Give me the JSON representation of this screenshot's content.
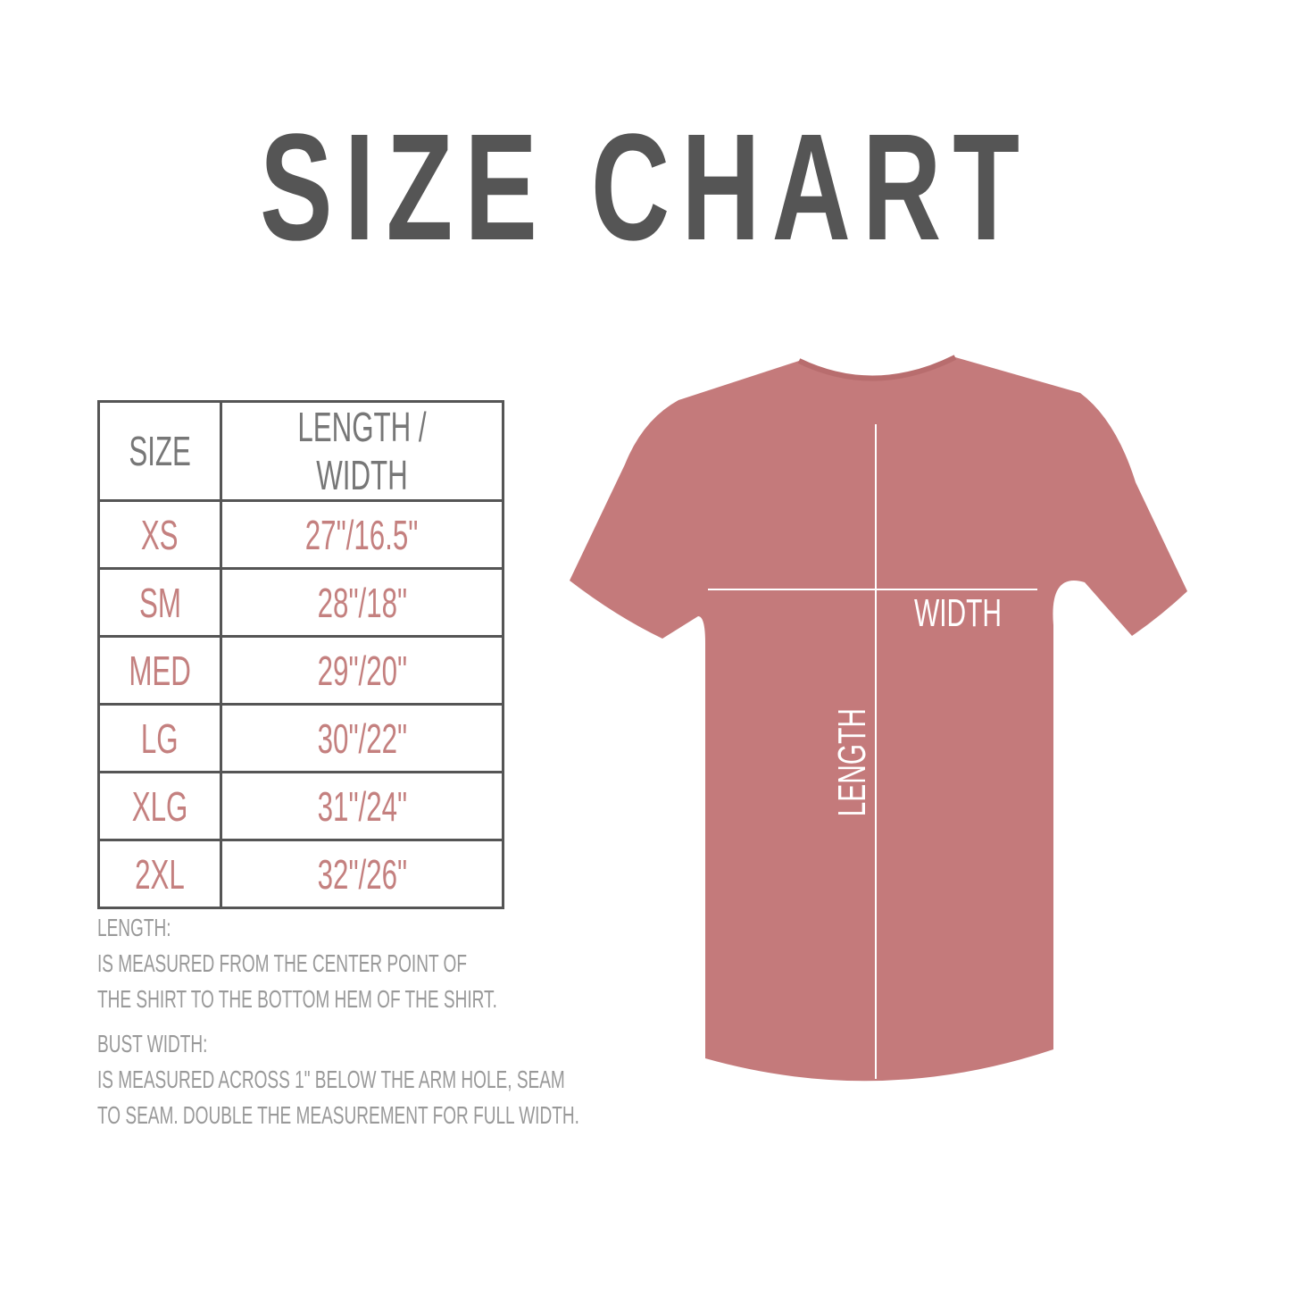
{
  "title": "SIZE CHART",
  "table": {
    "headers": [
      "SIZE",
      "LENGTH / WIDTH"
    ],
    "rows": [
      {
        "size": "XS",
        "measure": "27\"/16.5\""
      },
      {
        "size": "SM",
        "measure": "28\"/18\""
      },
      {
        "size": "MED",
        "measure": "29\"/20\""
      },
      {
        "size": "LG",
        "measure": "30\"/22\""
      },
      {
        "size": "XLG",
        "measure": "31\"/24\""
      },
      {
        "size": "2XL",
        "measure": "32\"/26\""
      }
    ]
  },
  "notes": {
    "length_heading": "LENGTH:",
    "length_lines": [
      "IS MEASURED FROM THE CENTER POINT OF",
      "THE SHIRT TO THE BOTTOM HEM OF THE SHIRT."
    ],
    "width_heading": "BUST WIDTH:",
    "width_lines": [
      "IS MEASURED ACROSS  1\" BELOW THE ARM HOLE, SEAM",
      "TO SEAM. DOUBLE THE MEASUREMENT FOR FULL WIDTH."
    ]
  },
  "diagram": {
    "width_label": "WIDTH",
    "length_label": "LENGTH"
  },
  "colors": {
    "title": "#555555",
    "size_values": "#c4807f",
    "shirt": "#c47a7b",
    "notes": "#999999"
  }
}
